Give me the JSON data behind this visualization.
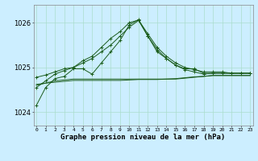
{
  "title": "Graphe pression niveau de la mer (hPa)",
  "ylim": [
    1023.7,
    1026.4
  ],
  "yticks": [
    1024,
    1025,
    1026
  ],
  "background_color": "#cceeff",
  "grid_color": "#aaddcc",
  "line_color": "#1a5c1a",
  "line1": [
    1024.15,
    1024.55,
    1024.75,
    1024.8,
    1024.97,
    1024.97,
    1024.85,
    1025.1,
    1025.35,
    1025.6,
    1025.95,
    1026.07,
    1025.7,
    1025.4,
    1025.2,
    1025.05,
    1024.97,
    1024.97,
    1024.87,
    1024.87,
    1024.87,
    1024.87,
    1024.87,
    1024.87
  ],
  "line2": [
    1024.55,
    1024.7,
    1024.85,
    1024.93,
    1025.0,
    1025.15,
    1025.25,
    1025.45,
    1025.65,
    1025.8,
    1026.0,
    1026.06,
    1025.75,
    1025.45,
    1025.25,
    1025.1,
    1025.0,
    1024.95,
    1024.9,
    1024.9,
    1024.9,
    1024.87,
    1024.87,
    1024.87
  ],
  "line3": [
    1024.78,
    1024.83,
    1024.9,
    1024.97,
    1025.0,
    1025.1,
    1025.2,
    1025.35,
    1025.5,
    1025.7,
    1025.9,
    1026.05,
    1025.7,
    1025.35,
    1025.2,
    1025.05,
    1024.95,
    1024.9,
    1024.85,
    1024.87,
    1024.87,
    1024.87,
    1024.87,
    1024.87
  ],
  "line4_flat": [
    1024.6,
    1024.65,
    1024.7,
    1024.72,
    1024.74,
    1024.74,
    1024.74,
    1024.74,
    1024.74,
    1024.74,
    1024.74,
    1024.74,
    1024.74,
    1024.74,
    1024.74,
    1024.74,
    1024.76,
    1024.78,
    1024.8,
    1024.82,
    1024.82,
    1024.82,
    1024.82,
    1024.82
  ],
  "line5_flat": [
    1024.62,
    1024.65,
    1024.67,
    1024.69,
    1024.71,
    1024.71,
    1024.71,
    1024.71,
    1024.71,
    1024.71,
    1024.72,
    1024.73,
    1024.73,
    1024.73,
    1024.74,
    1024.75,
    1024.77,
    1024.79,
    1024.8,
    1024.82,
    1024.82,
    1024.82,
    1024.82,
    1024.82
  ],
  "figsize": [
    3.2,
    2.0
  ],
  "dpi": 100,
  "xlabel_fontsize": 6.5,
  "ytick_fontsize": 6,
  "xtick_fontsize": 4.5
}
